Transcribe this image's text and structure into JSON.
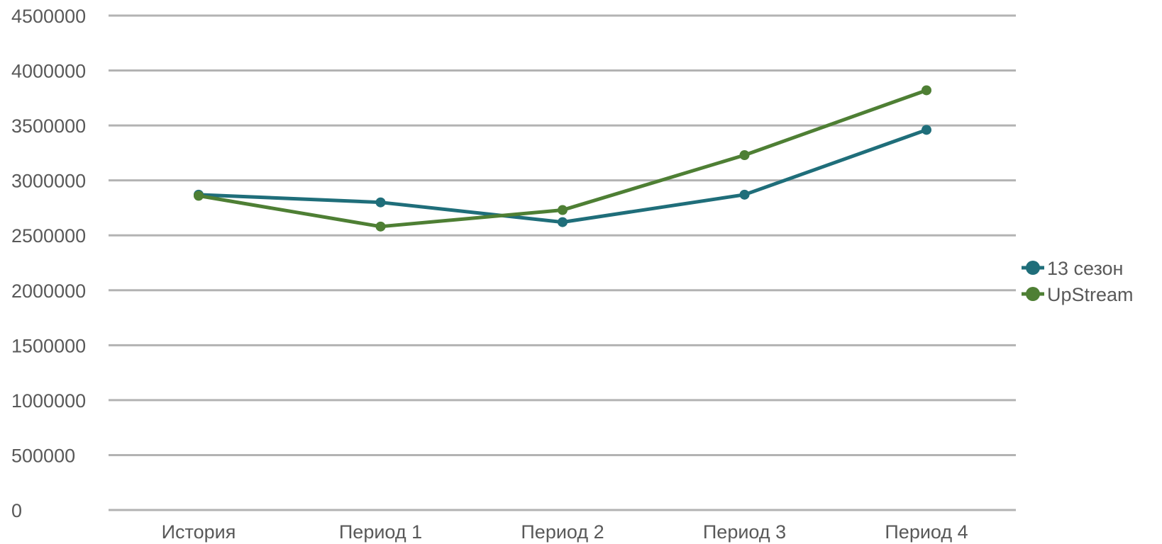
{
  "chart_data": {
    "type": "line",
    "title": "",
    "xlabel": "",
    "ylabel": "",
    "categories": [
      "История",
      "Период 1",
      "Период 2",
      "Период 3",
      "Период 4"
    ],
    "y_ticks": [
      "0",
      "500000",
      "1000000",
      "1500000",
      "2000000",
      "2500000",
      "3000000",
      "3500000",
      "4000000",
      "4500000"
    ],
    "ylim": [
      0,
      4500000
    ],
    "grid": true,
    "legend_position": "right",
    "series": [
      {
        "name": "13 сезон",
        "color": "#1f6e7a",
        "values": [
          2870000,
          2800000,
          2620000,
          2870000,
          3460000
        ]
      },
      {
        "name": "UpStream",
        "color": "#4e7f34",
        "values": [
          2860000,
          2580000,
          2730000,
          3230000,
          3820000
        ]
      }
    ]
  }
}
